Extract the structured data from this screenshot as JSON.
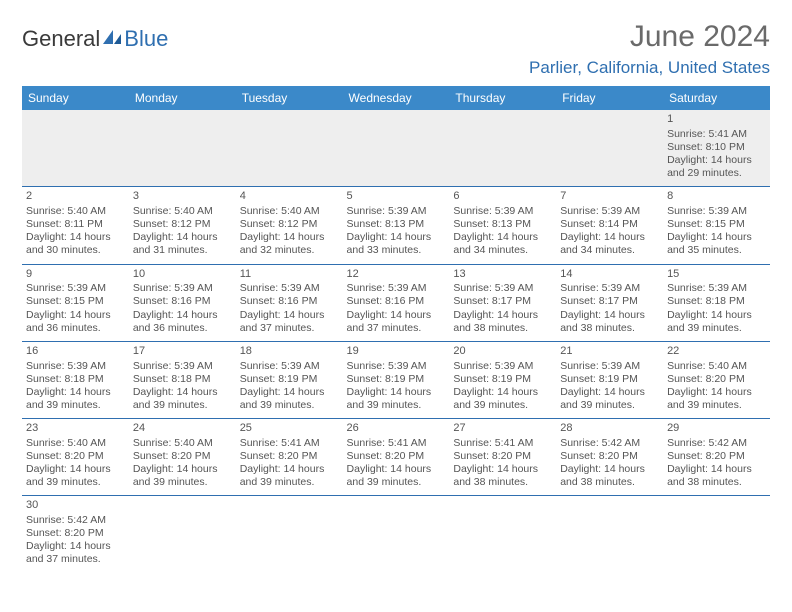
{
  "brand": {
    "part1": "General",
    "part2": "Blue"
  },
  "title": "June 2024",
  "location": "Parlier, California, United States",
  "day_headers": [
    "Sunday",
    "Monday",
    "Tuesday",
    "Wednesday",
    "Thursday",
    "Friday",
    "Saturday"
  ],
  "colors": {
    "header_bg": "#3b89c9",
    "accent": "#2f6fb0",
    "blank_row_bg": "#eeeeee",
    "text": "#555555",
    "title_text": "#6a6a6a"
  },
  "typography": {
    "title_fontsize": 30,
    "location_fontsize": 17,
    "header_fontsize": 12,
    "cell_fontsize": 10.5
  },
  "weeks": [
    [
      null,
      null,
      null,
      null,
      null,
      null,
      {
        "n": "1",
        "sunrise": "Sunrise: 5:41 AM",
        "sunset": "Sunset: 8:10 PM",
        "day1": "Daylight: 14 hours",
        "day2": "and 29 minutes."
      }
    ],
    [
      {
        "n": "2",
        "sunrise": "Sunrise: 5:40 AM",
        "sunset": "Sunset: 8:11 PM",
        "day1": "Daylight: 14 hours",
        "day2": "and 30 minutes."
      },
      {
        "n": "3",
        "sunrise": "Sunrise: 5:40 AM",
        "sunset": "Sunset: 8:12 PM",
        "day1": "Daylight: 14 hours",
        "day2": "and 31 minutes."
      },
      {
        "n": "4",
        "sunrise": "Sunrise: 5:40 AM",
        "sunset": "Sunset: 8:12 PM",
        "day1": "Daylight: 14 hours",
        "day2": "and 32 minutes."
      },
      {
        "n": "5",
        "sunrise": "Sunrise: 5:39 AM",
        "sunset": "Sunset: 8:13 PM",
        "day1": "Daylight: 14 hours",
        "day2": "and 33 minutes."
      },
      {
        "n": "6",
        "sunrise": "Sunrise: 5:39 AM",
        "sunset": "Sunset: 8:13 PM",
        "day1": "Daylight: 14 hours",
        "day2": "and 34 minutes."
      },
      {
        "n": "7",
        "sunrise": "Sunrise: 5:39 AM",
        "sunset": "Sunset: 8:14 PM",
        "day1": "Daylight: 14 hours",
        "day2": "and 34 minutes."
      },
      {
        "n": "8",
        "sunrise": "Sunrise: 5:39 AM",
        "sunset": "Sunset: 8:15 PM",
        "day1": "Daylight: 14 hours",
        "day2": "and 35 minutes."
      }
    ],
    [
      {
        "n": "9",
        "sunrise": "Sunrise: 5:39 AM",
        "sunset": "Sunset: 8:15 PM",
        "day1": "Daylight: 14 hours",
        "day2": "and 36 minutes."
      },
      {
        "n": "10",
        "sunrise": "Sunrise: 5:39 AM",
        "sunset": "Sunset: 8:16 PM",
        "day1": "Daylight: 14 hours",
        "day2": "and 36 minutes."
      },
      {
        "n": "11",
        "sunrise": "Sunrise: 5:39 AM",
        "sunset": "Sunset: 8:16 PM",
        "day1": "Daylight: 14 hours",
        "day2": "and 37 minutes."
      },
      {
        "n": "12",
        "sunrise": "Sunrise: 5:39 AM",
        "sunset": "Sunset: 8:16 PM",
        "day1": "Daylight: 14 hours",
        "day2": "and 37 minutes."
      },
      {
        "n": "13",
        "sunrise": "Sunrise: 5:39 AM",
        "sunset": "Sunset: 8:17 PM",
        "day1": "Daylight: 14 hours",
        "day2": "and 38 minutes."
      },
      {
        "n": "14",
        "sunrise": "Sunrise: 5:39 AM",
        "sunset": "Sunset: 8:17 PM",
        "day1": "Daylight: 14 hours",
        "day2": "and 38 minutes."
      },
      {
        "n": "15",
        "sunrise": "Sunrise: 5:39 AM",
        "sunset": "Sunset: 8:18 PM",
        "day1": "Daylight: 14 hours",
        "day2": "and 39 minutes."
      }
    ],
    [
      {
        "n": "16",
        "sunrise": "Sunrise: 5:39 AM",
        "sunset": "Sunset: 8:18 PM",
        "day1": "Daylight: 14 hours",
        "day2": "and 39 minutes."
      },
      {
        "n": "17",
        "sunrise": "Sunrise: 5:39 AM",
        "sunset": "Sunset: 8:18 PM",
        "day1": "Daylight: 14 hours",
        "day2": "and 39 minutes."
      },
      {
        "n": "18",
        "sunrise": "Sunrise: 5:39 AM",
        "sunset": "Sunset: 8:19 PM",
        "day1": "Daylight: 14 hours",
        "day2": "and 39 minutes."
      },
      {
        "n": "19",
        "sunrise": "Sunrise: 5:39 AM",
        "sunset": "Sunset: 8:19 PM",
        "day1": "Daylight: 14 hours",
        "day2": "and 39 minutes."
      },
      {
        "n": "20",
        "sunrise": "Sunrise: 5:39 AM",
        "sunset": "Sunset: 8:19 PM",
        "day1": "Daylight: 14 hours",
        "day2": "and 39 minutes."
      },
      {
        "n": "21",
        "sunrise": "Sunrise: 5:39 AM",
        "sunset": "Sunset: 8:19 PM",
        "day1": "Daylight: 14 hours",
        "day2": "and 39 minutes."
      },
      {
        "n": "22",
        "sunrise": "Sunrise: 5:40 AM",
        "sunset": "Sunset: 8:20 PM",
        "day1": "Daylight: 14 hours",
        "day2": "and 39 minutes."
      }
    ],
    [
      {
        "n": "23",
        "sunrise": "Sunrise: 5:40 AM",
        "sunset": "Sunset: 8:20 PM",
        "day1": "Daylight: 14 hours",
        "day2": "and 39 minutes."
      },
      {
        "n": "24",
        "sunrise": "Sunrise: 5:40 AM",
        "sunset": "Sunset: 8:20 PM",
        "day1": "Daylight: 14 hours",
        "day2": "and 39 minutes."
      },
      {
        "n": "25",
        "sunrise": "Sunrise: 5:41 AM",
        "sunset": "Sunset: 8:20 PM",
        "day1": "Daylight: 14 hours",
        "day2": "and 39 minutes."
      },
      {
        "n": "26",
        "sunrise": "Sunrise: 5:41 AM",
        "sunset": "Sunset: 8:20 PM",
        "day1": "Daylight: 14 hours",
        "day2": "and 39 minutes."
      },
      {
        "n": "27",
        "sunrise": "Sunrise: 5:41 AM",
        "sunset": "Sunset: 8:20 PM",
        "day1": "Daylight: 14 hours",
        "day2": "and 38 minutes."
      },
      {
        "n": "28",
        "sunrise": "Sunrise: 5:42 AM",
        "sunset": "Sunset: 8:20 PM",
        "day1": "Daylight: 14 hours",
        "day2": "and 38 minutes."
      },
      {
        "n": "29",
        "sunrise": "Sunrise: 5:42 AM",
        "sunset": "Sunset: 8:20 PM",
        "day1": "Daylight: 14 hours",
        "day2": "and 38 minutes."
      }
    ],
    [
      {
        "n": "30",
        "sunrise": "Sunrise: 5:42 AM",
        "sunset": "Sunset: 8:20 PM",
        "day1": "Daylight: 14 hours",
        "day2": "and 37 minutes."
      },
      null,
      null,
      null,
      null,
      null,
      null
    ]
  ]
}
